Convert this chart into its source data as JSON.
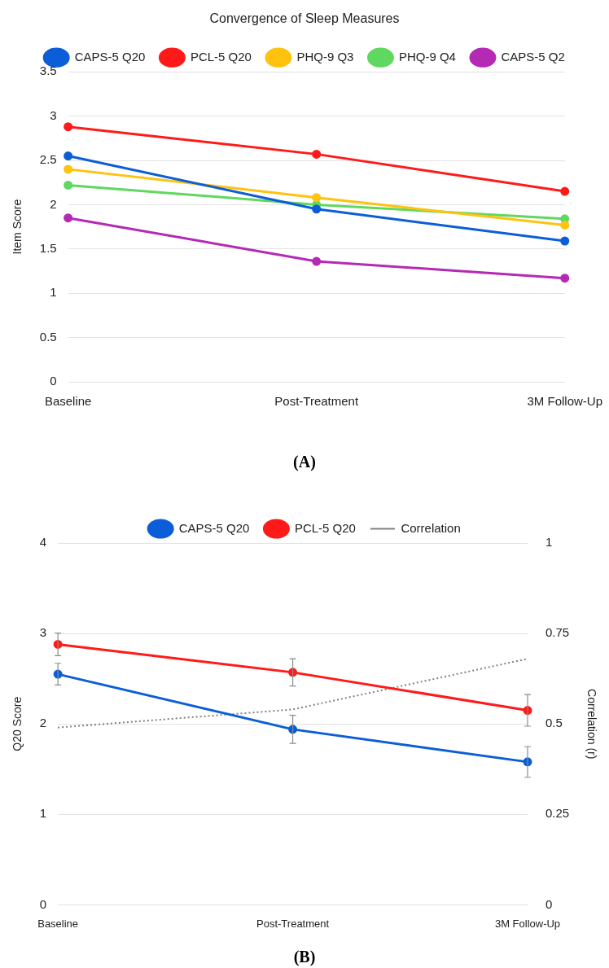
{
  "chart_data": [
    {
      "type": "line",
      "title": "Convergence of Sleep Measures",
      "ylabel": "Item Score",
      "categories": [
        "Baseline",
        "Post-Treatment",
        "3M Follow-Up"
      ],
      "series": [
        {
          "name": "CAPS-5 Q20",
          "color": "#0b5ed7",
          "values": [
            2.55,
            1.95,
            1.59
          ]
        },
        {
          "name": "PCL-5 Q20",
          "color": "#ff1a1a",
          "values": [
            2.88,
            2.57,
            2.15
          ]
        },
        {
          "name": "PHQ-9 Q3",
          "color": "#ffc20e",
          "values": [
            2.4,
            2.08,
            1.77
          ]
        },
        {
          "name": "PHQ-9 Q4",
          "color": "#5fd85f",
          "values": [
            2.22,
            2.0,
            1.84
          ]
        },
        {
          "name": "CAPS-5 Q2",
          "color": "#b52ab5",
          "values": [
            1.85,
            1.36,
            1.17
          ]
        }
      ],
      "ylim": [
        0,
        3.5
      ],
      "yticks": [
        0,
        0.5,
        1,
        1.5,
        2,
        2.5,
        3,
        3.5
      ],
      "grid": "y",
      "legend": "top",
      "marker": "circle",
      "line_style": "solid",
      "annotations": [
        "(A)"
      ]
    },
    {
      "type": "line",
      "ylabel": "Q20 Score",
      "y2label": "Correlation (r)",
      "categories": [
        "Baseline",
        "Post-Treatment",
        "3M Follow-Up"
      ],
      "series": [
        {
          "name": "CAPS-5 Q20",
          "color": "#0b5ed7",
          "values": [
            2.55,
            1.94,
            1.58
          ],
          "errors": [
            0.12,
            0.155,
            0.17
          ],
          "marker": "circle",
          "line_style": "solid"
        },
        {
          "name": "PCL-5 Q20",
          "color": "#ff1a1a",
          "values": [
            2.88,
            2.57,
            2.15
          ],
          "errors": [
            0.125,
            0.15,
            0.175
          ],
          "marker": "circle",
          "line_style": "solid"
        },
        {
          "name": "Correlation",
          "color": "#808080",
          "values": [
            0.49,
            0.54,
            0.68
          ],
          "axis": "y2",
          "marker": "none",
          "line_style": "dotted"
        }
      ],
      "ylim": [
        0,
        4
      ],
      "yticks": [
        0,
        1,
        2,
        3,
        4
      ],
      "y2lim": [
        0,
        1
      ],
      "y2ticks": [
        0,
        0.25,
        0.5,
        0.75,
        1
      ],
      "grid": "y",
      "legend": "top",
      "annotations": [
        "(B)"
      ]
    }
  ]
}
